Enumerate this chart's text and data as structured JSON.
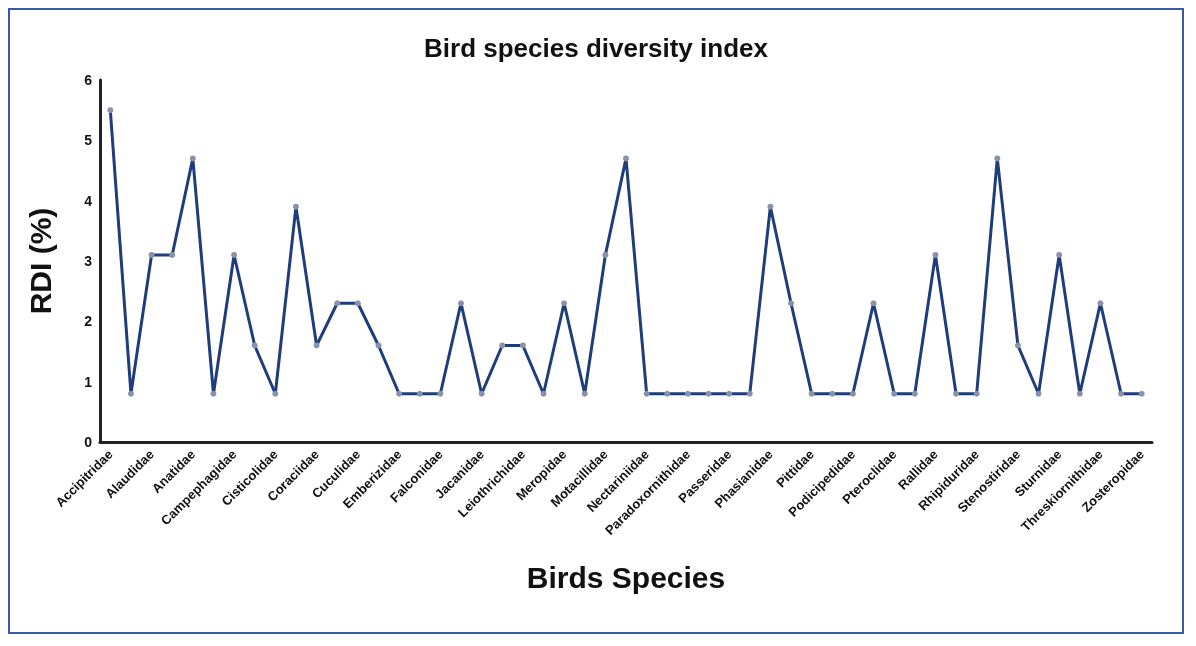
{
  "chart_data": {
    "type": "line",
    "title": "Bird species diversity index",
    "xlabel": "Birds Species",
    "ylabel": "RDI (%)",
    "categories": [
      "Accipitridae",
      null,
      "Alaudidae",
      null,
      "Anatidae",
      null,
      "Campephagidae",
      null,
      "Cisticolidae",
      null,
      "Coraciidae",
      null,
      "Cuculidae",
      null,
      "Emberizidae",
      null,
      "Falconidae",
      null,
      "Jacanidae",
      null,
      "Leiothrichidae",
      null,
      "Meropidae",
      null,
      "Motacillidae",
      null,
      "Nectariniidae",
      null,
      "Paradoxornithidae",
      null,
      "Passeridae",
      null,
      "Phasianidae",
      null,
      "Pittidae",
      null,
      "Podicipedidae",
      null,
      "Pteroclidae",
      null,
      "Rallidae",
      null,
      "Rhipiduridae",
      null,
      "Stenostiridae",
      null,
      "Sturnidae",
      null,
      "Threskiornithidae",
      null,
      "Zosteropidae"
    ],
    "series": [
      {
        "color": "#1f3d7a",
        "values": [
          5.5,
          0.8,
          3.1,
          3.1,
          4.7,
          0.8,
          3.1,
          1.6,
          0.8,
          3.9,
          1.6,
          2.3,
          2.3,
          1.6,
          0.8,
          0.8,
          0.8,
          2.3,
          0.8,
          1.6,
          1.6,
          0.8,
          2.3,
          0.8,
          3.1,
          4.7,
          0.8,
          0.8,
          0.8,
          0.8,
          0.8,
          0.8,
          3.9,
          2.3,
          0.8,
          0.8,
          0.8,
          2.3,
          0.8,
          0.8,
          3.1,
          0.8,
          0.8,
          4.7,
          1.6,
          0.8,
          3.1,
          0.8,
          2.3,
          0.8,
          0.8
        ]
      }
    ],
    "ylim": [
      0,
      6
    ],
    "yticks": [
      0,
      1,
      2,
      3,
      4,
      5,
      6
    ],
    "grid": false,
    "marker": "circle",
    "line_style": "solid"
  }
}
